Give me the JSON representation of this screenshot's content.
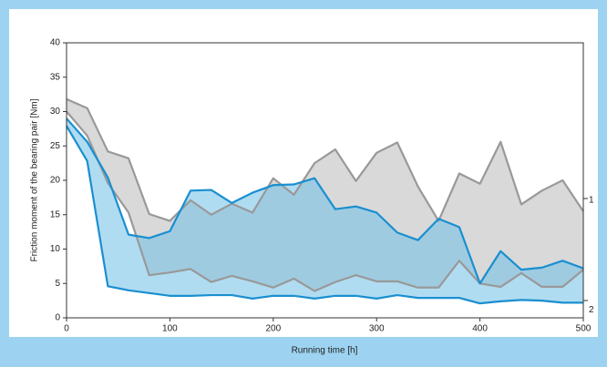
{
  "chart_data": {
    "type": "band",
    "x_label": "Running time [h]",
    "y_label": "Friction moment of the bearing pair [Nm]",
    "x": [
      0,
      20,
      40,
      60,
      80,
      100,
      120,
      140,
      160,
      180,
      200,
      220,
      240,
      260,
      280,
      300,
      320,
      340,
      360,
      380,
      400,
      420,
      440,
      460,
      480,
      500
    ],
    "xlim": [
      0,
      500
    ],
    "xticks": [
      0,
      100,
      200,
      300,
      400,
      500
    ],
    "ylim": [
      0,
      40
    ],
    "yticks": [
      0,
      5,
      10,
      15,
      20,
      25,
      30,
      35,
      40
    ],
    "series": [
      {
        "name": "1",
        "color": "#999999",
        "fill": "#d9d9d9",
        "upper": [
          31.8,
          30.5,
          24.2,
          23.2,
          15.1,
          14.1,
          17.1,
          15.0,
          16.6,
          15.3,
          20.3,
          17.9,
          22.5,
          24.5,
          19.9,
          24.0,
          25.5,
          19.1,
          14.1,
          21.0,
          19.5,
          25.6,
          16.5,
          18.5,
          20.0,
          15.5
        ],
        "lower": [
          30.0,
          26.5,
          19.6,
          15.3,
          6.2,
          6.6,
          7.1,
          5.2,
          6.1,
          5.3,
          4.4,
          5.7,
          3.9,
          5.2,
          6.2,
          5.3,
          5.3,
          4.4,
          4.4,
          8.3,
          5.0,
          4.5,
          6.5,
          4.5,
          4.5,
          7.0
        ]
      },
      {
        "name": "2",
        "color": "#1a8fd0",
        "fill": "#6fbfe8",
        "upper": [
          29.0,
          25.6,
          20.4,
          12.1,
          11.6,
          12.6,
          18.5,
          18.6,
          16.7,
          18.2,
          19.3,
          19.4,
          20.3,
          15.8,
          16.2,
          15.3,
          12.4,
          11.3,
          14.4,
          13.2,
          5.0,
          9.7,
          7.0,
          7.3,
          8.3,
          7.2
        ],
        "lower": [
          27.9,
          22.8,
          4.6,
          4.0,
          3.6,
          3.2,
          3.2,
          3.3,
          3.3,
          2.8,
          3.2,
          3.2,
          2.8,
          3.2,
          3.2,
          2.8,
          3.3,
          2.9,
          2.9,
          2.9,
          2.1,
          2.4,
          2.6,
          2.5,
          2.2,
          2.2
        ]
      }
    ]
  }
}
